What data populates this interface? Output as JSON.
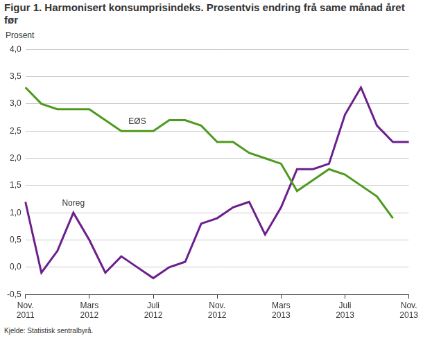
{
  "chart_data": {
    "type": "line",
    "title": "Figur 1. Harmonisert konsumprisindeks. Prosentvis endring frå same månad året før",
    "y_label": "Prosent",
    "source": "Kjelde: Statistisk sentralbyrå.",
    "categories": [
      "Nov.\n2011",
      null,
      null,
      null,
      "Mars\n2012",
      null,
      null,
      null,
      "Juli\n2012",
      null,
      null,
      null,
      "Nov.\n2012",
      null,
      null,
      null,
      "Mars\n2013",
      null,
      null,
      null,
      "Juli\n2013",
      null,
      null,
      null,
      "Nov.\n2013"
    ],
    "series": [
      {
        "name": "EØS",
        "color": "#4f9a1e",
        "values": [
          3.3,
          3.0,
          2.9,
          2.9,
          2.9,
          2.7,
          2.5,
          2.5,
          2.5,
          2.7,
          2.7,
          2.6,
          2.3,
          2.3,
          2.1,
          2.0,
          1.9,
          1.4,
          1.6,
          1.8,
          1.7,
          1.5,
          1.3,
          0.9,
          null
        ]
      },
      {
        "name": "Noreg",
        "color": "#6b1f8c",
        "values": [
          1.2,
          -0.1,
          0.3,
          1.0,
          0.5,
          -0.1,
          0.2,
          0.0,
          -0.2,
          0.0,
          0.1,
          0.8,
          0.9,
          1.1,
          1.2,
          0.6,
          1.1,
          1.8,
          1.8,
          1.9,
          2.8,
          3.3,
          2.6,
          2.3,
          2.3
        ]
      }
    ],
    "ylim": [
      -0.5,
      4.0
    ],
    "yticks": [
      {
        "value": -0.5,
        "label": "-0,5"
      },
      {
        "value": 0,
        "label": "0,0"
      },
      {
        "value": 0.5,
        "label": "0,5"
      },
      {
        "value": 1.0,
        "label": "1,0"
      },
      {
        "value": 1.5,
        "label": "1,5"
      },
      {
        "value": 2.0,
        "label": "2,0"
      },
      {
        "value": 2.5,
        "label": "2,5"
      },
      {
        "value": 3.0,
        "label": "3,0"
      },
      {
        "value": 3.5,
        "label": "3,5"
      },
      {
        "value": 4.0,
        "label": "4,0"
      }
    ],
    "grid": true
  }
}
